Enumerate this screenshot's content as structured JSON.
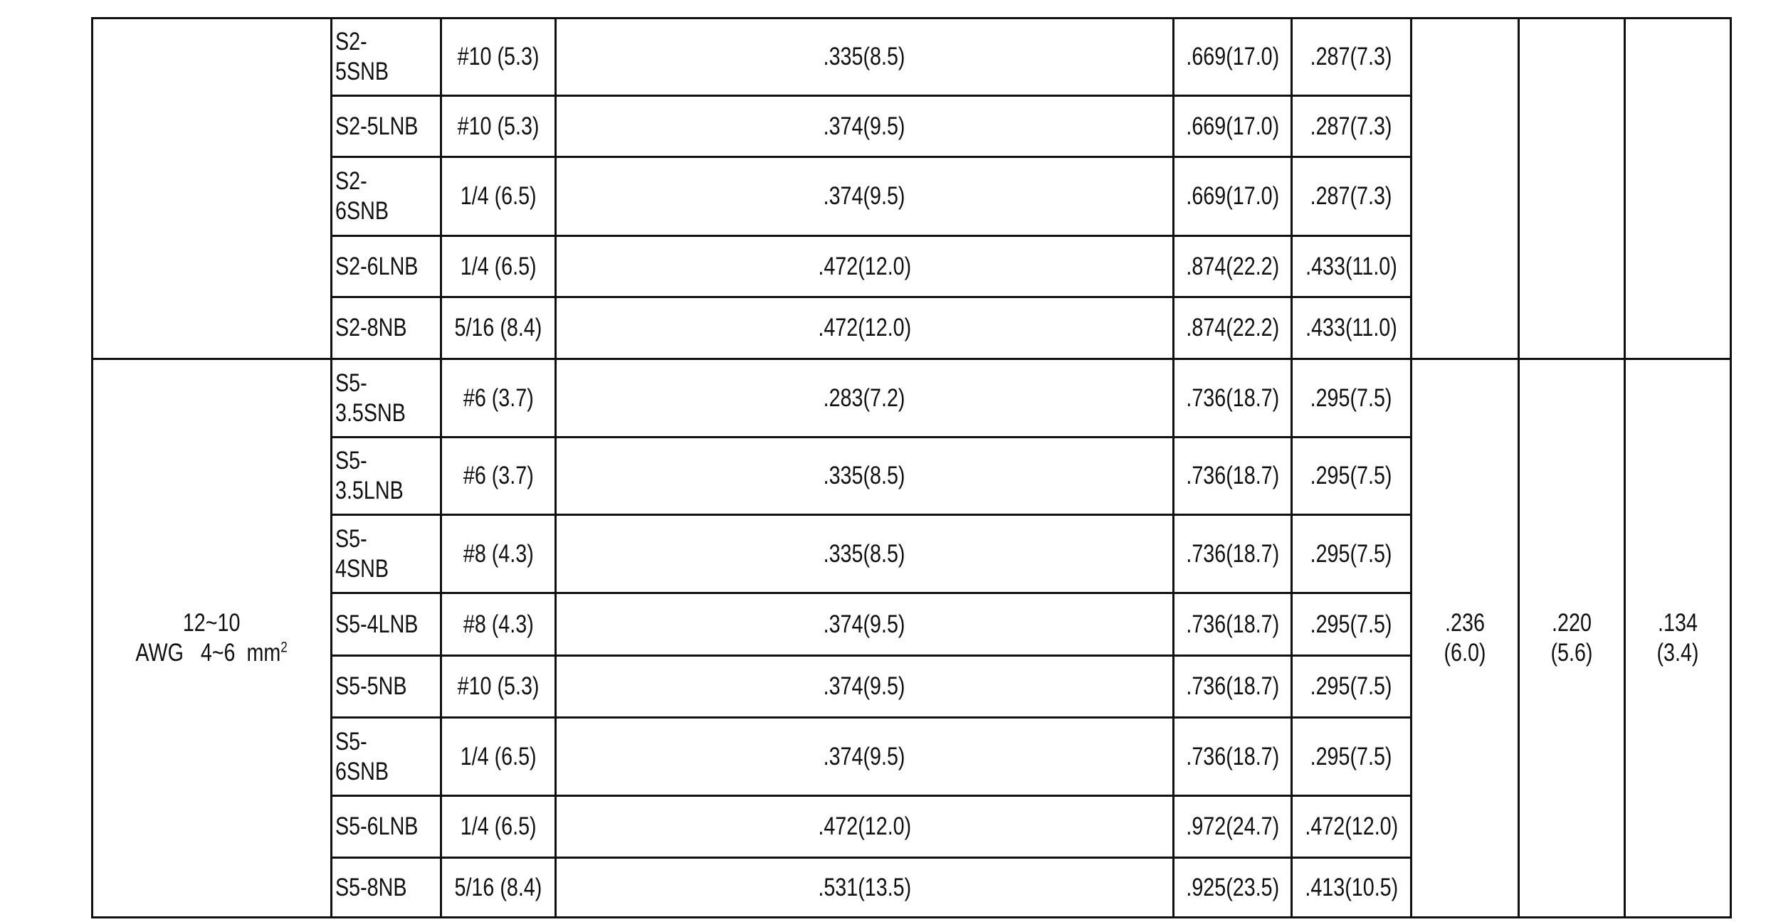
{
  "groups": [
    {
      "wire_range": "",
      "wire_unit": "",
      "col_a": "",
      "col_a_mm": "",
      "col_b": "",
      "col_b_mm": "",
      "col_c": "",
      "col_c_mm": "",
      "rows": [
        {
          "model": "S2-5SNB",
          "stud": "#10 (5.3)",
          "w": ".335(8.5)",
          "l": ".669(17.0)",
          "f": ".287(7.3)"
        },
        {
          "model": "S2-5LNB",
          "stud": "#10 (5.3)",
          "w": ".374(9.5)",
          "l": ".669(17.0)",
          "f": ".287(7.3)"
        },
        {
          "model": "S2-6SNB",
          "stud": "1/4 (6.5)",
          "w": ".374(9.5)",
          "l": ".669(17.0)",
          "f": ".287(7.3)"
        },
        {
          "model": "S2-6LNB",
          "stud": "1/4 (6.5)",
          "w": ".472(12.0)",
          "l": ".874(22.2)",
          "f": ".433(11.0)"
        },
        {
          "model": "S2-8NB",
          "stud": "5/16 (8.4)",
          "w": ".472(12.0)",
          "l": ".874(22.2)",
          "f": ".433(11.0)"
        }
      ]
    },
    {
      "wire_range": "12~10",
      "wire_unit": "AWG   4~6  mm",
      "wire_sup": "2",
      "col_a": ".236",
      "col_a_mm": "(6.0)",
      "col_b": ".220",
      "col_b_mm": "(5.6)",
      "col_c": ".134",
      "col_c_mm": "(3.4)",
      "rows": [
        {
          "model": "S5-3.5SNB",
          "stud": "#6 (3.7)",
          "w": ".283(7.2)",
          "l": ".736(18.7)",
          "f": ".295(7.5)"
        },
        {
          "model": "S5-3.5LNB",
          "stud": "#6 (3.7)",
          "w": ".335(8.5)",
          "l": ".736(18.7)",
          "f": ".295(7.5)"
        },
        {
          "model": "S5-4SNB",
          "stud": "#8 (4.3)",
          "w": ".335(8.5)",
          "l": ".736(18.7)",
          "f": ".295(7.5)"
        },
        {
          "model": "S5-4LNB",
          "stud": "#8 (4.3)",
          "w": ".374(9.5)",
          "l": ".736(18.7)",
          "f": ".295(7.5)"
        },
        {
          "model": "S5-5NB",
          "stud": "#10 (5.3)",
          "w": ".374(9.5)",
          "l": ".736(18.7)",
          "f": ".295(7.5)"
        },
        {
          "model": "S5-6SNB",
          "stud": "1/4 (6.5)",
          "w": ".374(9.5)",
          "l": ".736(18.7)",
          "f": ".295(7.5)"
        },
        {
          "model": "S5-6LNB",
          "stud": "1/4 (6.5)",
          "w": ".472(12.0)",
          "l": ".972(24.7)",
          "f": ".472(12.0)"
        },
        {
          "model": "S5-8NB",
          "stud": "5/16 (8.4)",
          "w": ".531(13.5)",
          "l": ".925(23.5)",
          "f": ".413(10.5)"
        }
      ]
    }
  ]
}
